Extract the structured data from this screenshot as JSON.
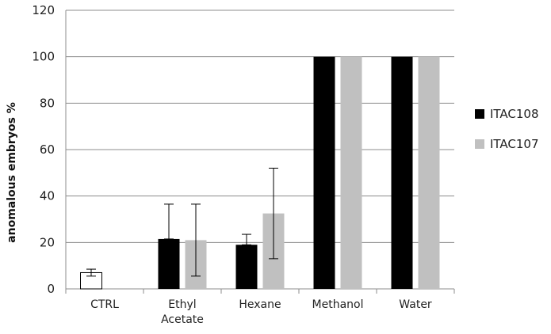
{
  "chart_data": {
    "type": "bar",
    "title": "",
    "xlabel": "",
    "ylabel": "anomalous embryos %",
    "ylim": [
      0,
      120
    ],
    "yticks": [
      0,
      20,
      40,
      60,
      80,
      100,
      120
    ],
    "grid": true,
    "legend_position": "right",
    "categories": [
      "CTRL",
      "Ethyl Acetate",
      "Hexane",
      "Methanol",
      "Water"
    ],
    "ctrl": {
      "value": 7,
      "error": [
        5.5,
        8.5
      ],
      "fill": "#ffffff",
      "stroke": "#000000"
    },
    "series": [
      {
        "name": "ITAC108",
        "color": "#000000",
        "values": [
          null,
          21.5,
          19,
          100,
          100
        ],
        "error": [
          null,
          [
            null,
            36.5
          ],
          [
            null,
            23.5
          ],
          null,
          null
        ]
      },
      {
        "name": "ITAC107",
        "color": "#c0c0c0",
        "values": [
          null,
          21,
          32.5,
          100,
          100
        ],
        "error": [
          null,
          [
            5.5,
            36.5
          ],
          [
            13,
            52
          ],
          null,
          null
        ]
      }
    ]
  }
}
